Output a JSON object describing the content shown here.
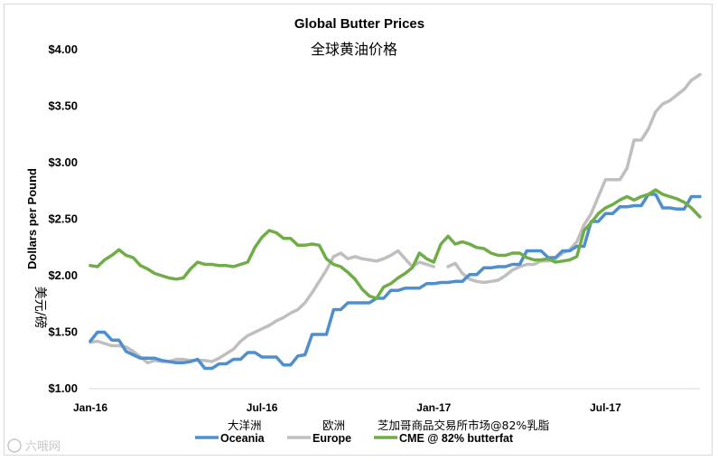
{
  "chart_data": {
    "type": "line",
    "title": "Global Butter Prices",
    "subtitle": "全球黄油价格",
    "ylabel": "Dollars per Pound",
    "ylabel_cn": "美元/磅",
    "ylim": [
      1.0,
      4.0
    ],
    "yticks": [
      "$1.00",
      "$1.50",
      "$2.00",
      "$2.50",
      "$3.00",
      "$3.50",
      "$4.00"
    ],
    "ytick_values": [
      1.0,
      1.5,
      2.0,
      2.5,
      3.0,
      3.5,
      4.0
    ],
    "xlim": [
      0,
      21.3
    ],
    "xticks": [
      {
        "label": "Jan-16",
        "value": 0
      },
      {
        "label": "Jul-16",
        "value": 6
      },
      {
        "label": "Jan-17",
        "value": 12
      },
      {
        "label": "Jul-17",
        "value": 18
      }
    ],
    "legend_position": "bottom",
    "watermark": "六哦网",
    "series": [
      {
        "name": "Oceania",
        "name_cn": "大洋洲",
        "color": "#4f8fcd",
        "x": [
          0,
          0.25,
          0.5,
          0.75,
          1,
          1.25,
          1.5,
          1.75,
          2,
          2.25,
          2.5,
          2.75,
          3,
          3.25,
          3.5,
          3.75,
          4,
          4.25,
          4.5,
          4.75,
          5,
          5.25,
          5.5,
          5.75,
          6,
          6.25,
          6.5,
          6.75,
          7,
          7.25,
          7.5,
          7.75,
          8,
          8.25,
          8.5,
          8.75,
          9,
          9.25,
          9.5,
          9.75,
          10,
          10.25,
          10.5,
          10.75,
          11,
          11.25,
          11.5,
          11.75,
          12,
          12.25,
          12.5,
          12.75,
          13,
          13.25,
          13.5,
          13.75,
          14,
          14.25,
          14.5,
          14.75,
          15,
          15.25,
          15.5,
          15.75,
          16,
          16.25,
          16.5,
          16.75,
          17,
          17.25,
          17.5,
          17.75,
          18,
          18.25,
          18.5,
          18.75,
          19,
          19.25,
          19.5,
          19.75,
          20,
          20.25,
          20.5,
          20.75,
          21,
          21.3
        ],
        "values": [
          1.42,
          1.5,
          1.5,
          1.43,
          1.43,
          1.33,
          1.3,
          1.27,
          1.27,
          1.27,
          1.25,
          1.24,
          1.23,
          1.23,
          1.24,
          1.26,
          1.18,
          1.18,
          1.22,
          1.22,
          1.26,
          1.26,
          1.32,
          1.32,
          1.28,
          1.28,
          1.28,
          1.21,
          1.21,
          1.29,
          1.3,
          1.48,
          1.48,
          1.48,
          1.7,
          1.7,
          1.76,
          1.76,
          1.76,
          1.76,
          1.8,
          1.8,
          1.87,
          1.87,
          1.89,
          1.89,
          1.89,
          1.93,
          1.93,
          1.94,
          1.94,
          1.95,
          1.95,
          2.01,
          2.01,
          2.07,
          2.07,
          2.08,
          2.08,
          2.1,
          2.1,
          2.22,
          2.22,
          2.22,
          2.16,
          2.16,
          2.22,
          2.22,
          2.26,
          2.26,
          2.48,
          2.48,
          2.55,
          2.55,
          2.61,
          2.61,
          2.62,
          2.62,
          2.72,
          2.72,
          2.6,
          2.6,
          2.59,
          2.59,
          2.7,
          2.7
        ]
      },
      {
        "name": "Europe",
        "name_cn": "欧洲",
        "color": "#bfbfbf",
        "x": [
          0,
          0.25,
          0.5,
          0.75,
          1,
          1.25,
          1.5,
          1.75,
          2,
          2.25,
          2.5,
          2.75,
          3,
          3.25,
          3.5,
          3.75,
          4,
          4.25,
          4.5,
          4.75,
          5,
          5.25,
          5.5,
          5.75,
          6,
          6.25,
          6.5,
          6.75,
          7,
          7.25,
          7.5,
          7.75,
          8,
          8.25,
          8.5,
          8.75,
          9,
          9.25,
          9.5,
          9.75,
          10,
          10.25,
          10.5,
          10.75,
          11,
          11.25,
          11.5,
          11.75,
          12,
          null,
          12.5,
          12.75,
          13,
          13.25,
          13.5,
          13.75,
          14,
          14.25,
          14.5,
          14.75,
          15,
          15.25,
          15.5,
          15.75,
          16,
          16.25,
          16.5,
          16.75,
          17,
          17.25,
          17.5,
          17.75,
          18,
          18.25,
          18.5,
          18.75,
          19,
          19.25,
          19.5,
          19.75,
          20,
          20.25,
          20.5,
          20.75,
          21,
          21.3
        ],
        "values": [
          1.41,
          1.42,
          1.4,
          1.38,
          1.38,
          1.37,
          1.33,
          1.28,
          1.23,
          1.25,
          1.24,
          1.24,
          1.26,
          1.26,
          1.25,
          1.25,
          1.25,
          1.24,
          1.27,
          1.31,
          1.35,
          1.42,
          1.47,
          1.5,
          1.53,
          1.56,
          1.6,
          1.63,
          1.67,
          1.7,
          1.76,
          1.85,
          1.95,
          2.05,
          2.17,
          2.2,
          2.15,
          2.17,
          2.15,
          2.14,
          2.13,
          2.15,
          2.18,
          2.22,
          2.15,
          2.08,
          2.12,
          2.1,
          2.08,
          null,
          2.08,
          2.11,
          2.02,
          1.97,
          1.95,
          1.94,
          1.95,
          1.96,
          2.0,
          2.05,
          2.08,
          2.1,
          2.1,
          2.13,
          2.13,
          2.15,
          2.2,
          2.23,
          2.3,
          2.45,
          2.55,
          2.7,
          2.85,
          2.85,
          2.85,
          2.95,
          3.2,
          3.2,
          3.3,
          3.45,
          3.52,
          3.55,
          3.6,
          3.65,
          3.73,
          3.78
        ]
      },
      {
        "name": "CME @ 82% butterfat",
        "name_cn": "芝加哥商品交易所市场@82%乳脂",
        "color": "#70ad47",
        "x": [
          0,
          0.25,
          0.5,
          0.75,
          1,
          1.25,
          1.5,
          1.75,
          2,
          2.25,
          2.5,
          2.75,
          3,
          3.25,
          3.5,
          3.75,
          4,
          4.25,
          4.5,
          4.75,
          5,
          5.25,
          5.5,
          5.75,
          6,
          6.25,
          6.5,
          6.75,
          7,
          7.25,
          7.5,
          7.75,
          8,
          8.25,
          8.5,
          8.75,
          9,
          9.25,
          9.5,
          9.75,
          10,
          10.25,
          10.5,
          10.75,
          11,
          11.25,
          11.5,
          11.75,
          12,
          12.25,
          12.5,
          12.75,
          13,
          13.25,
          13.5,
          13.75,
          14,
          14.25,
          14.5,
          14.75,
          15,
          15.25,
          15.5,
          15.75,
          16,
          16.25,
          16.5,
          16.75,
          17,
          17.25,
          17.5,
          17.75,
          18,
          18.25,
          18.5,
          18.75,
          19,
          19.25,
          19.5,
          19.75,
          20,
          20.25,
          20.5,
          20.75,
          21,
          21.3
        ],
        "values": [
          2.09,
          2.08,
          2.14,
          2.18,
          2.23,
          2.18,
          2.16,
          2.09,
          2.06,
          2.02,
          2.0,
          1.98,
          1.97,
          1.98,
          2.06,
          2.12,
          2.1,
          2.1,
          2.09,
          2.09,
          2.08,
          2.1,
          2.12,
          2.25,
          2.34,
          2.4,
          2.38,
          2.33,
          2.33,
          2.27,
          2.27,
          2.28,
          2.27,
          2.15,
          2.1,
          2.08,
          2.03,
          1.97,
          1.88,
          1.82,
          1.8,
          1.9,
          1.93,
          1.98,
          2.02,
          2.07,
          2.2,
          2.15,
          2.12,
          2.28,
          2.35,
          2.28,
          2.3,
          2.28,
          2.25,
          2.24,
          2.2,
          2.18,
          2.18,
          2.2,
          2.2,
          2.16,
          2.14,
          2.14,
          2.15,
          2.12,
          2.13,
          2.14,
          2.17,
          2.4,
          2.47,
          2.55,
          2.6,
          2.63,
          2.67,
          2.7,
          2.67,
          2.7,
          2.72,
          2.76,
          2.72,
          2.7,
          2.68,
          2.65,
          2.6,
          2.52
        ]
      }
    ]
  }
}
